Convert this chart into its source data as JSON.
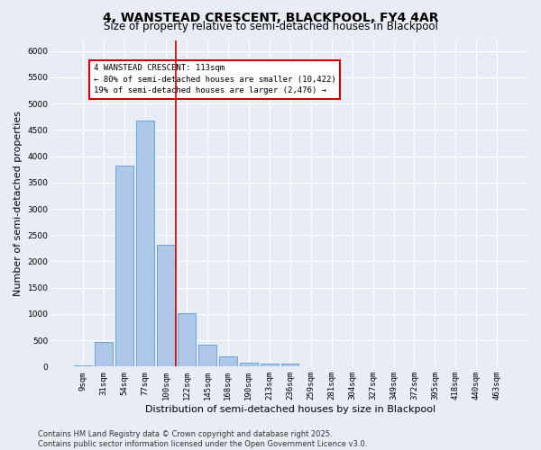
{
  "title1": "4, WANSTEAD CRESCENT, BLACKPOOL, FY4 4AR",
  "title2": "Size of property relative to semi-detached houses in Blackpool",
  "xlabel": "Distribution of semi-detached houses by size in Blackpool",
  "ylabel": "Number of semi-detached properties",
  "categories": [
    "9sqm",
    "31sqm",
    "54sqm",
    "77sqm",
    "100sqm",
    "122sqm",
    "145sqm",
    "168sqm",
    "190sqm",
    "213sqm",
    "236sqm",
    "259sqm",
    "281sqm",
    "304sqm",
    "327sqm",
    "349sqm",
    "372sqm",
    "395sqm",
    "418sqm",
    "440sqm",
    "463sqm"
  ],
  "values": [
    30,
    460,
    3820,
    4680,
    2310,
    1010,
    420,
    200,
    75,
    60,
    55,
    0,
    0,
    0,
    0,
    0,
    0,
    0,
    0,
    0,
    0
  ],
  "bar_color": "#aec6e8",
  "bar_edge_color": "#5b9bd5",
  "vline_x": 4.5,
  "vline_color": "#cc0000",
  "annotation_title": "4 WANSTEAD CRESCENT: 113sqm",
  "annotation_line1": "← 80% of semi-detached houses are smaller (10,422)",
  "annotation_line2": "19% of semi-detached houses are larger (2,476) →",
  "annotation_box_color": "#ffffff",
  "annotation_box_edge": "#cc0000",
  "ylim": [
    0,
    6200
  ],
  "yticks": [
    0,
    500,
    1000,
    1500,
    2000,
    2500,
    3000,
    3500,
    4000,
    4500,
    5000,
    5500,
    6000
  ],
  "footer1": "Contains HM Land Registry data © Crown copyright and database right 2025.",
  "footer2": "Contains public sector information licensed under the Open Government Licence v3.0.",
  "bg_color": "#e8edf5",
  "plot_bg_color": "#e8edf5",
  "grid_color": "#ffffff",
  "title1_fontsize": 10,
  "title2_fontsize": 8.5,
  "label_fontsize": 8,
  "tick_fontsize": 6.5,
  "footer_fontsize": 6
}
